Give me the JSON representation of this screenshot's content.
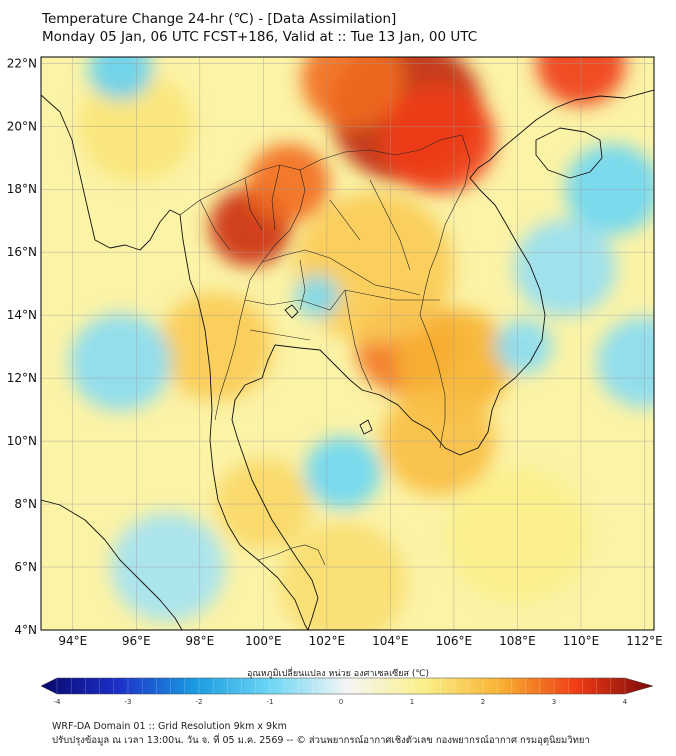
{
  "title": {
    "line1": "Temperature Change 24-hr (℃) - [Data Assimilation]",
    "line2": "Monday 05 Jan, 06 UTC FCST+186, Valid at :: Tue 13 Jan, 00 UTC"
  },
  "map": {
    "lon_range": [
      93,
      112.3
    ],
    "lat_range": [
      4,
      22.2
    ],
    "lat_labels": [
      "22°N",
      "20°N",
      "18°N",
      "16°N",
      "14°N",
      "12°N",
      "10°N",
      "8°N",
      "6°N",
      "4°N"
    ],
    "lat_values": [
      22,
      20,
      18,
      16,
      14,
      12,
      10,
      8,
      6,
      4
    ],
    "lon_labels": [
      "94°E",
      "96°E",
      "98°E",
      "100°E",
      "102°E",
      "104°E",
      "106°E",
      "108°E",
      "110°E",
      "112°E"
    ],
    "lon_values": [
      94,
      96,
      98,
      100,
      102,
      104,
      106,
      108,
      110,
      112
    ]
  },
  "colorbar": {
    "title": "อุณหภูมิเปลี่ยนแปลง หน่วย องศาเซลเซียส (℃)",
    "min": -4,
    "max": 4,
    "tick_labels": [
      "-4",
      "-3",
      "-2",
      "-1",
      "0",
      "1",
      "2",
      "3",
      "4"
    ],
    "colors": {
      "neg4": "#08086b",
      "neg3": "#1c2fc8",
      "neg2": "#1a9ae0",
      "neg1": "#6cd6f4",
      "zero": "#f5f5f5",
      "pos1": "#fbf08a",
      "pos2": "#f7b232",
      "pos3": "#ef3c14",
      "pos4": "#7a0808"
    }
  },
  "footer": {
    "line1": "WRF-DA Domain 01 :: Grid Resolution 9km x 9km",
    "line2": "ปรับปรุงข้อมูล ณ เวลา 13:00น. วัน จ. ที่ 05 ม.ค. 2569 -- © ส่วนพยากรณ์อากาศเชิงตัวเลข กองพยากรณ์อากาศ กรมอุตุนิยมวิทยา"
  },
  "field_spots": [
    {
      "lon": 104.5,
      "lat": 20.5,
      "value": 3.4,
      "r": 2.4
    },
    {
      "lon": 105.5,
      "lat": 19.6,
      "value": 3.0,
      "r": 1.8
    },
    {
      "lon": 102.8,
      "lat": 21.5,
      "value": 2.6,
      "r": 1.6
    },
    {
      "lon": 99.6,
      "lat": 16.8,
      "value": 3.3,
      "r": 1.3
    },
    {
      "lon": 100.8,
      "lat": 18.2,
      "value": 2.6,
      "r": 1.3
    },
    {
      "lon": 110.0,
      "lat": 22.0,
      "value": 3.0,
      "r": 1.4
    },
    {
      "lon": 104.5,
      "lat": 13.0,
      "value": 2.5,
      "r": 1.6
    },
    {
      "lon": 106.0,
      "lat": 12.5,
      "value": 2.0,
      "r": 1.8
    },
    {
      "lon": 105.5,
      "lat": 10.0,
      "value": 1.8,
      "r": 1.8
    },
    {
      "lon": 103.5,
      "lat": 15.5,
      "value": 1.6,
      "r": 2.5
    },
    {
      "lon": 98.5,
      "lat": 13.0,
      "value": 1.6,
      "r": 1.8
    },
    {
      "lon": 100.0,
      "lat": 8.0,
      "value": 1.4,
      "r": 1.5
    },
    {
      "lon": 102.5,
      "lat": 5.5,
      "value": 1.3,
      "r": 2.0
    },
    {
      "lon": 96.0,
      "lat": 20.0,
      "value": 1.2,
      "r": 1.8
    },
    {
      "lon": 108.0,
      "lat": 7.0,
      "value": 1.0,
      "r": 2.2
    },
    {
      "lon": 111.0,
      "lat": 18.0,
      "value": -1.0,
      "r": 1.5
    },
    {
      "lon": 95.5,
      "lat": 12.5,
      "value": -0.8,
      "r": 1.6
    },
    {
      "lon": 102.5,
      "lat": 9.0,
      "value": -1.0,
      "r": 1.2
    },
    {
      "lon": 101.7,
      "lat": 14.6,
      "value": -0.9,
      "r": 0.7
    },
    {
      "lon": 95.5,
      "lat": 21.8,
      "value": -1.1,
      "r": 1.0
    },
    {
      "lon": 109.5,
      "lat": 15.5,
      "value": -0.7,
      "r": 1.6
    },
    {
      "lon": 97.0,
      "lat": 6.0,
      "value": -0.6,
      "r": 1.8
    },
    {
      "lon": 112.0,
      "lat": 12.5,
      "value": -0.8,
      "r": 1.5
    },
    {
      "lon": 108.2,
      "lat": 13.0,
      "value": -0.8,
      "r": 0.9
    }
  ]
}
